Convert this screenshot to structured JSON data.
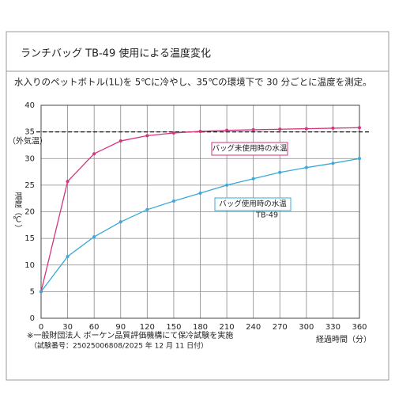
{
  "chart_data": {
    "type": "line",
    "title": "ランチバッグ TB-49 使用による温度変化",
    "subtitle": "水入りのペットボトル(1L)を 5℃に冷やし、35℃の環境下で 30 分ごとに温度を測定。",
    "x_label": "経過時間（分）",
    "y_label": "温度（℃）",
    "x": [
      0,
      30,
      60,
      90,
      120,
      150,
      180,
      210,
      240,
      270,
      300,
      330,
      360
    ],
    "series": [
      {
        "name": "バッグ未使用時の水温",
        "color": "#d6337f",
        "values": [
          5,
          25.7,
          30.9,
          33.3,
          34.3,
          34.8,
          35.1,
          35.3,
          35.4,
          35.5,
          35.6,
          35.7,
          35.8
        ]
      },
      {
        "name": "バッグ使用時の水温",
        "color": "#3aa8d8",
        "values": [
          5,
          11.6,
          15.3,
          18.1,
          20.4,
          22,
          23.5,
          25,
          26.2,
          27.4,
          28.3,
          29.1,
          30
        ]
      }
    ],
    "series_note": "TB-49",
    "reference_line": {
      "value": 35,
      "label": "（外気温）"
    },
    "xlim": [
      0,
      360
    ],
    "xticks": [
      0,
      30,
      60,
      90,
      120,
      150,
      180,
      210,
      240,
      270,
      300,
      330,
      360
    ],
    "ylim": [
      0,
      40
    ],
    "yticks": [
      0,
      5,
      10,
      15,
      20,
      25,
      30,
      35,
      40
    ],
    "grid": true,
    "footnotes": [
      "※一般財団法人 ボーケン品質評価機構にて保冷試験を実施",
      "（試験番号：25025006808/2025 年 12 月 11 日付）"
    ]
  }
}
